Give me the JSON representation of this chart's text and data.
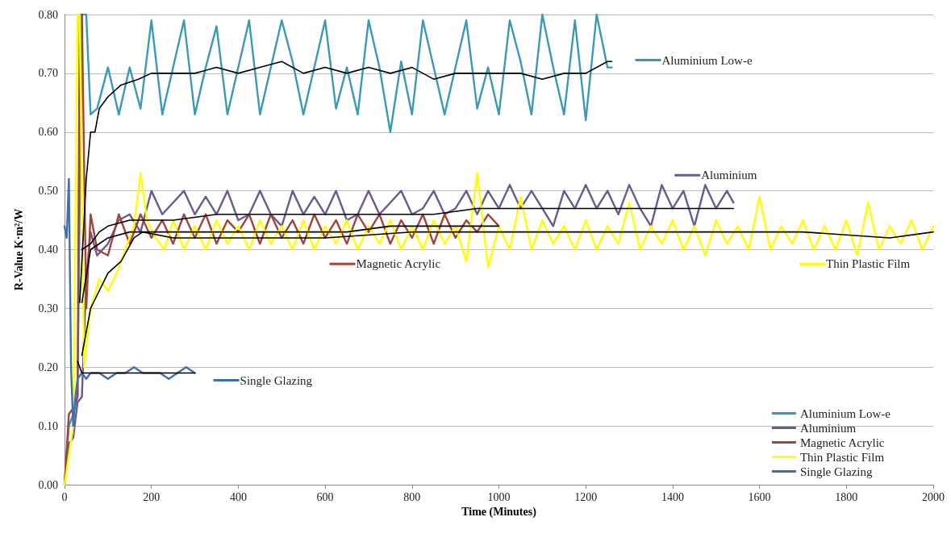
{
  "chart_data": {
    "type": "line",
    "xlabel": "Time (Minutes)",
    "ylabel": "R-Value K·m²/W",
    "xlim": [
      0,
      2000
    ],
    "xticks": [
      0,
      200,
      400,
      600,
      800,
      1000,
      1200,
      1400,
      1600,
      1800,
      2000
    ],
    "ylim": [
      0,
      0.8
    ],
    "yticks": [
      {
        "value": 0,
        "label": "0.00"
      },
      {
        "value": 0.1,
        "label": "0.10"
      },
      {
        "value": 0.2,
        "label": "0.20"
      },
      {
        "value": 0.3,
        "label": "0.30"
      },
      {
        "value": 0.4,
        "label": "0.40"
      },
      {
        "value": 0.5,
        "label": "0.50"
      },
      {
        "value": 0.6,
        "label": "0.60"
      },
      {
        "value": 0.7,
        "label": "0.70"
      },
      {
        "value": 0.8,
        "label": "0.80"
      }
    ],
    "grid": "y",
    "legend": "bottom right",
    "marker": "none",
    "line_style": "solid",
    "annotations": [
      "Aluminium Low-e",
      "Aluminium",
      "Magnetic Acrylic",
      "Thin Plastic Film",
      "Single Glazing"
    ],
    "series": [
      {
        "name": "Aluminium Low-e",
        "color": "#3a9ab5",
        "x": [
          0,
          10,
          20,
          30,
          40,
          50,
          60,
          75,
          100,
          125,
          150,
          175,
          200,
          225,
          250,
          275,
          300,
          325,
          350,
          375,
          400,
          425,
          450,
          475,
          500,
          525,
          550,
          575,
          600,
          625,
          650,
          675,
          700,
          725,
          750,
          775,
          800,
          825,
          850,
          875,
          900,
          925,
          950,
          975,
          1000,
          1025,
          1050,
          1075,
          1100,
          1125,
          1150,
          1175,
          1200,
          1225,
          1250,
          1260
        ],
        "values": [
          0.0,
          0.1,
          0.12,
          0.15,
          0.8,
          0.8,
          0.63,
          0.64,
          0.71,
          0.63,
          0.71,
          0.64,
          0.79,
          0.63,
          0.71,
          0.79,
          0.63,
          0.71,
          0.78,
          0.63,
          0.71,
          0.79,
          0.63,
          0.71,
          0.79,
          0.72,
          0.63,
          0.71,
          0.79,
          0.64,
          0.71,
          0.63,
          0.79,
          0.71,
          0.6,
          0.72,
          0.63,
          0.79,
          0.71,
          0.63,
          0.71,
          0.79,
          0.64,
          0.71,
          0.63,
          0.79,
          0.72,
          0.63,
          0.8,
          0.71,
          0.63,
          0.79,
          0.62,
          0.8,
          0.71,
          0.71
        ]
      },
      {
        "name": "Aluminium",
        "color": "#6b5a8e",
        "x": [
          0,
          10,
          20,
          30,
          40,
          50,
          60,
          75,
          100,
          125,
          150,
          175,
          200,
          225,
          250,
          275,
          300,
          325,
          350,
          375,
          400,
          425,
          450,
          475,
          500,
          525,
          550,
          575,
          600,
          625,
          650,
          675,
          700,
          725,
          750,
          775,
          800,
          825,
          850,
          875,
          900,
          925,
          950,
          975,
          1000,
          1025,
          1050,
          1075,
          1100,
          1125,
          1150,
          1175,
          1200,
          1225,
          1250,
          1275,
          1300,
          1325,
          1350,
          1375,
          1400,
          1425,
          1450,
          1475,
          1500,
          1525,
          1540
        ],
        "values": [
          0.0,
          0.07,
          0.08,
          0.14,
          0.15,
          0.35,
          0.43,
          0.39,
          0.41,
          0.45,
          0.46,
          0.43,
          0.5,
          0.46,
          0.48,
          0.5,
          0.46,
          0.49,
          0.46,
          0.5,
          0.45,
          0.46,
          0.5,
          0.46,
          0.44,
          0.5,
          0.46,
          0.49,
          0.46,
          0.5,
          0.45,
          0.46,
          0.5,
          0.46,
          0.48,
          0.5,
          0.46,
          0.47,
          0.5,
          0.46,
          0.47,
          0.5,
          0.46,
          0.5,
          0.47,
          0.51,
          0.47,
          0.5,
          0.47,
          0.44,
          0.5,
          0.47,
          0.51,
          0.47,
          0.5,
          0.46,
          0.51,
          0.47,
          0.44,
          0.51,
          0.47,
          0.5,
          0.44,
          0.51,
          0.47,
          0.5,
          0.48
        ]
      },
      {
        "name": "Magnetic Acrylic",
        "color": "#a0453c",
        "x": [
          0,
          10,
          20,
          30,
          35,
          40,
          50,
          60,
          75,
          100,
          125,
          150,
          175,
          200,
          225,
          250,
          275,
          300,
          325,
          350,
          375,
          400,
          425,
          450,
          475,
          500,
          525,
          550,
          575,
          600,
          625,
          650,
          675,
          700,
          725,
          750,
          775,
          800,
          825,
          850,
          875,
          900,
          925,
          950,
          975,
          1000
        ],
        "values": [
          0.0,
          0.12,
          0.13,
          0.15,
          0.8,
          0.8,
          0.3,
          0.46,
          0.4,
          0.39,
          0.46,
          0.41,
          0.46,
          0.42,
          0.45,
          0.41,
          0.46,
          0.42,
          0.46,
          0.41,
          0.45,
          0.43,
          0.46,
          0.41,
          0.46,
          0.42,
          0.45,
          0.41,
          0.46,
          0.42,
          0.45,
          0.41,
          0.46,
          0.43,
          0.46,
          0.41,
          0.45,
          0.42,
          0.46,
          0.41,
          0.46,
          0.42,
          0.45,
          0.43,
          0.46,
          0.44
        ]
      },
      {
        "name": "Thin Plastic Film",
        "color": "#ffff00",
        "x": [
          0,
          10,
          20,
          30,
          35,
          45,
          60,
          80,
          100,
          120,
          140,
          160,
          175,
          190,
          210,
          230,
          250,
          275,
          300,
          325,
          350,
          375,
          400,
          425,
          450,
          475,
          500,
          525,
          550,
          575,
          600,
          625,
          650,
          675,
          700,
          725,
          750,
          775,
          800,
          825,
          850,
          875,
          900,
          925,
          950,
          975,
          1000,
          1025,
          1050,
          1075,
          1100,
          1125,
          1150,
          1175,
          1200,
          1225,
          1250,
          1275,
          1300,
          1325,
          1350,
          1375,
          1400,
          1425,
          1450,
          1475,
          1500,
          1525,
          1550,
          1575,
          1600,
          1625,
          1650,
          1675,
          1700,
          1725,
          1750,
          1775,
          1800,
          1825,
          1850,
          1875,
          1900,
          1925,
          1950,
          1975,
          2000
        ],
        "values": [
          0.0,
          0.05,
          0.1,
          0.8,
          0.8,
          0.2,
          0.3,
          0.35,
          0.33,
          0.36,
          0.4,
          0.44,
          0.53,
          0.45,
          0.42,
          0.4,
          0.45,
          0.4,
          0.44,
          0.4,
          0.45,
          0.41,
          0.44,
          0.4,
          0.45,
          0.41,
          0.44,
          0.4,
          0.45,
          0.4,
          0.44,
          0.41,
          0.45,
          0.4,
          0.44,
          0.41,
          0.45,
          0.4,
          0.44,
          0.4,
          0.45,
          0.41,
          0.44,
          0.38,
          0.53,
          0.37,
          0.44,
          0.4,
          0.49,
          0.4,
          0.45,
          0.41,
          0.44,
          0.4,
          0.45,
          0.4,
          0.44,
          0.41,
          0.48,
          0.4,
          0.44,
          0.41,
          0.45,
          0.4,
          0.44,
          0.39,
          0.45,
          0.41,
          0.44,
          0.4,
          0.49,
          0.4,
          0.44,
          0.41,
          0.45,
          0.4,
          0.44,
          0.4,
          0.45,
          0.39,
          0.48,
          0.4,
          0.44,
          0.41,
          0.45,
          0.4,
          0.44
        ]
      },
      {
        "name": "Single Glazing",
        "color": "#3f6fad",
        "x": [
          0,
          5,
          10,
          15,
          20,
          25,
          30,
          40,
          50,
          60,
          80,
          100,
          120,
          140,
          160,
          180,
          200,
          220,
          240,
          260,
          280,
          300
        ],
        "values": [
          0.44,
          0.42,
          0.52,
          0.2,
          0.1,
          0.15,
          0.18,
          0.19,
          0.18,
          0.19,
          0.19,
          0.18,
          0.19,
          0.19,
          0.2,
          0.19,
          0.19,
          0.19,
          0.18,
          0.19,
          0.2,
          0.19
        ]
      },
      {
        "color": "#000000",
        "x": [
          35,
          50,
          60,
          70,
          80,
          100,
          130,
          170,
          200,
          250,
          300,
          350,
          400,
          450,
          500,
          550,
          600,
          650,
          700,
          750,
          800,
          850,
          900,
          950,
          1000,
          1050,
          1100,
          1150,
          1200,
          1250,
          1260
        ],
        "values": [
          0.31,
          0.52,
          0.6,
          0.6,
          0.64,
          0.66,
          0.68,
          0.69,
          0.7,
          0.7,
          0.7,
          0.71,
          0.7,
          0.71,
          0.72,
          0.7,
          0.71,
          0.7,
          0.71,
          0.7,
          0.71,
          0.69,
          0.7,
          0.7,
          0.7,
          0.7,
          0.69,
          0.7,
          0.7,
          0.72,
          0.72
        ]
      },
      {
        "color": "#000000",
        "x": [
          40,
          60,
          80,
          100,
          150,
          250,
          350,
          450,
          550,
          650,
          750,
          850,
          950,
          1050,
          1150,
          1250,
          1350,
          1450,
          1540
        ],
        "values": [
          0.4,
          0.41,
          0.43,
          0.44,
          0.45,
          0.45,
          0.46,
          0.46,
          0.46,
          0.46,
          0.46,
          0.46,
          0.47,
          0.47,
          0.47,
          0.47,
          0.47,
          0.47,
          0.47
        ]
      },
      {
        "color": "#000000",
        "x": [
          40,
          60,
          80,
          100,
          150,
          250,
          350,
          450,
          550,
          650,
          750,
          850,
          950,
          1000
        ],
        "values": [
          0.31,
          0.4,
          0.41,
          0.42,
          0.43,
          0.43,
          0.43,
          0.43,
          0.43,
          0.43,
          0.44,
          0.44,
          0.44,
          0.44
        ]
      },
      {
        "color": "#000000",
        "x": [
          40,
          60,
          80,
          100,
          130,
          160,
          180,
          250,
          400,
          600,
          800,
          1000,
          1100,
          1300,
          1500,
          1700,
          1900,
          2000
        ],
        "values": [
          0.22,
          0.3,
          0.33,
          0.36,
          0.38,
          0.42,
          0.43,
          0.42,
          0.42,
          0.42,
          0.43,
          0.43,
          0.43,
          0.43,
          0.43,
          0.43,
          0.42,
          0.43
        ]
      },
      {
        "color": "#000000",
        "x": [
          30,
          40,
          50,
          100,
          200,
          300
        ],
        "values": [
          0.21,
          0.19,
          0.19,
          0.19,
          0.19,
          0.19
        ]
      }
    ]
  }
}
